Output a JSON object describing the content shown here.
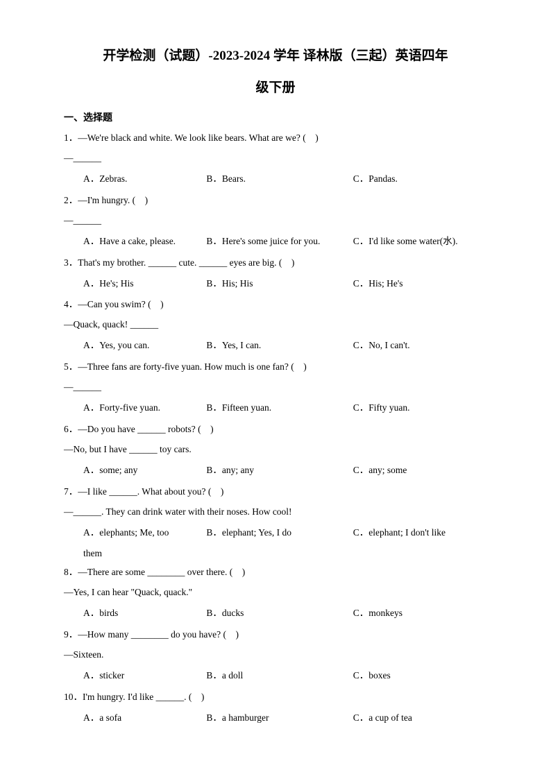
{
  "title": "开学检测（试题）-2023-2024 学年 译林版（三起）英语四年",
  "subtitle": "级下册",
  "section_label": "一、选择题",
  "questions": [
    {
      "num": "1．",
      "text": "—We're black and white. We look like bears. What are we? (　)",
      "cont": "—______",
      "opts": {
        "a": "A．Zebras.",
        "b": "B．Bears.",
        "c": "C．Pandas."
      }
    },
    {
      "num": "2．",
      "text": "—I'm hungry. (　)",
      "cont": "—______",
      "opts": {
        "a": "A．Have a cake, please.",
        "b": "B．Here's some juice for you.",
        "c": "C．I'd like some water(水)."
      }
    },
    {
      "num": "3．",
      "text": "That's my brother. ______ cute. ______ eyes are big. (　)",
      "opts": {
        "a": "A．He's; His",
        "b": "B．His; His",
        "c": "C．His; He's"
      }
    },
    {
      "num": "4．",
      "text": "—Can you swim? (　)",
      "cont": "—Quack, quack! ______",
      "opts": {
        "a": "A．Yes, you can.",
        "b": "B．Yes, I can.",
        "c": "C．No, I can't."
      }
    },
    {
      "num": "5．",
      "text": "—Three fans are forty-five yuan. How much is one fan? (　)",
      "cont": "—______",
      "opts": {
        "a": "A．Forty-five yuan.",
        "b": "B．Fifteen yuan.",
        "c": "C．Fifty yuan."
      }
    },
    {
      "num": "6．",
      "text": "—Do you have ______ robots? (　)",
      "cont": "—No, but I have ______ toy cars.",
      "opts": {
        "a": "A．some; any",
        "b": "B．any; any",
        "c": "C．any; some"
      }
    },
    {
      "num": "7．",
      "text": "—I like ______. What about you? (　)",
      "cont": "—______. They can drink water with their noses. How cool!",
      "opts": {
        "a": "A．elephants; Me, too",
        "b": "B．elephant; Yes, I do",
        "c": "C．elephant; I don't like"
      },
      "extra": "them"
    },
    {
      "num": "8．",
      "text": "—There are some ________ over there. (　)",
      "cont": "—Yes, I can hear \"Quack, quack.\"",
      "opts": {
        "a": "A．birds",
        "b": "B．ducks",
        "c": "C．monkeys"
      }
    },
    {
      "num": "9．",
      "text": "—How many ________ do you have? (　)",
      "cont": "—Sixteen.",
      "opts": {
        "a": "A．sticker",
        "b": "B．a doll",
        "c": "C．boxes"
      }
    },
    {
      "num": "10．",
      "text": "I'm hungry. I'd like ______. (　)",
      "opts": {
        "a": "A．a sofa",
        "b": "B．a hamburger",
        "c": "C．a cup of tea"
      }
    }
  ]
}
